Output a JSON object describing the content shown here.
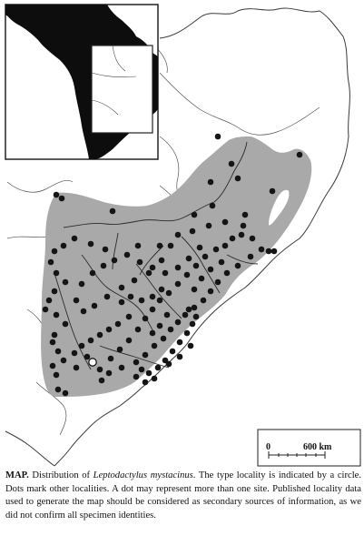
{
  "figure": {
    "scale_bar": {
      "start_label": "0",
      "end_label": "600 km"
    },
    "inset": {
      "content": "South America with study area outlined"
    }
  },
  "caption": {
    "label": "MAP.",
    "part1": " Distribution of ",
    "species": "Leptodactylus mystacinus",
    "part2": ". The type locality is indicated by a circle. Dots mark other localities. A dot may represent more than one site. Published locality data used to generate the map should be considered as secondary sources of information, as we did not confirm all specimen identities."
  },
  "legend": {
    "range_fill_color": "#a9a9a9",
    "locality_dot_color": "#151515",
    "type_locality_color": "#ffffff"
  }
}
